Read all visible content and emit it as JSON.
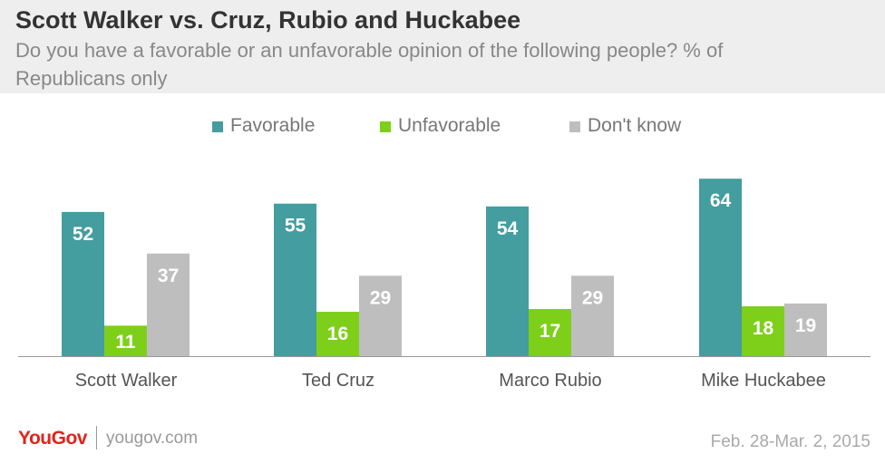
{
  "header": {
    "title": "Scott Walker vs. Cruz, Rubio and Huckabee",
    "subtitle": "Do you have a favorable or an unfavorable opinion of the following people? % of Republicans only"
  },
  "legend": [
    {
      "label": "Favorable",
      "color": "#449d9e"
    },
    {
      "label": "Unfavorable",
      "color": "#7ecf1a"
    },
    {
      "label": "Don't know",
      "color": "#bebebe"
    }
  ],
  "chart_data": {
    "type": "bar",
    "title": "Scott Walker vs. Cruz, Rubio and Huckabee",
    "subtitle": "Do you have a favorable or an unfavorable opinion of the following people? % of Republicans only",
    "categories": [
      "Scott Walker",
      "Ted Cruz",
      "Marco Rubio",
      "Mike Huckabee"
    ],
    "series": [
      {
        "name": "Favorable",
        "color": "#449d9e",
        "values": [
          52,
          55,
          54,
          64
        ]
      },
      {
        "name": "Unfavorable",
        "color": "#7ecf1a",
        "values": [
          11,
          16,
          17,
          18
        ]
      },
      {
        "name": "Don't know",
        "color": "#bebebe",
        "values": [
          37,
          29,
          29,
          19
        ]
      }
    ],
    "ylim": [
      0,
      70
    ],
    "grid": false,
    "legend_position": "top"
  },
  "footer": {
    "logo": "YouGov",
    "site": "yougov.com",
    "date": "Feb. 28-Mar. 2, 2015"
  }
}
